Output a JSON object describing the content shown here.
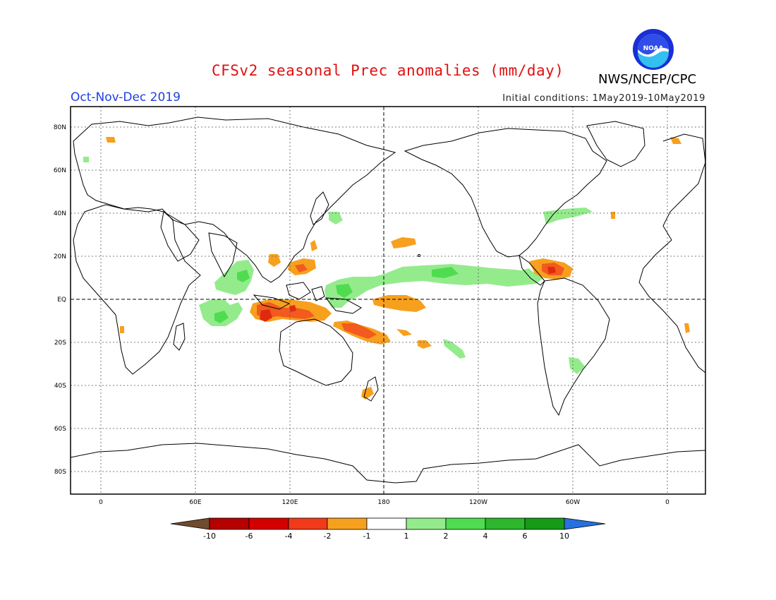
{
  "header": {
    "title": "CFSv2 seasonal Prec anomalies (mm/day)",
    "season": "Oct-Nov-Dec 2019",
    "initial_conditions": "Initial conditions: 1May2019-10May2019",
    "agency": "NWS/NCEP/CPC",
    "logo_text": "NOAA"
  },
  "axes": {
    "lat_labels": [
      "80N",
      "60N",
      "40N",
      "20N",
      "EQ",
      "20S",
      "40S",
      "60S",
      "80S"
    ],
    "lon_labels": [
      "0",
      "60E",
      "120E",
      "180",
      "120W",
      "60W",
      "0"
    ]
  },
  "colorbar": {
    "labels": [
      "-10",
      "-6",
      "-4",
      "-2",
      "-1",
      "1",
      "2",
      "4",
      "6",
      "10"
    ],
    "colors": [
      "#704b2e",
      "#b50000",
      "#d40000",
      "#f03a1a",
      "#f7a01e",
      "#ffffff",
      "#94eb8c",
      "#50dc50",
      "#2cb72c",
      "#169b16",
      "#2670e0"
    ]
  },
  "anomaly_colors": {
    "dry_light": "#f7a01e",
    "dry_mid": "#f25a1e",
    "dry_strong": "#e02a10",
    "wet_light": "#94eb8c",
    "wet_mid": "#50dc50"
  }
}
